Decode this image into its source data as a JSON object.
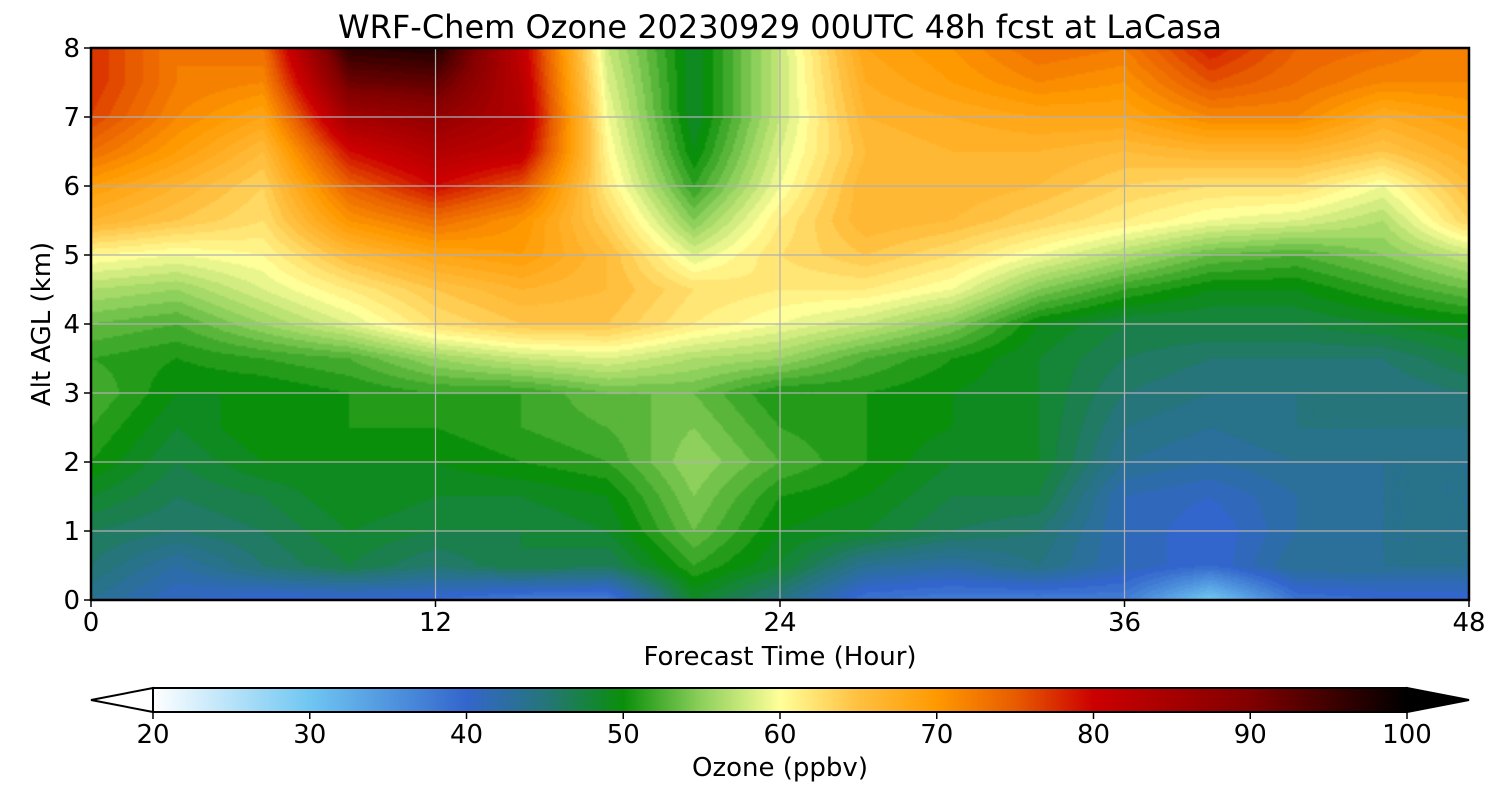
{
  "chart_data": {
    "type": "heatmap",
    "title": "WRF-Chem Ozone  20230929 00UTC 48h fcst at LaCasa",
    "xlabel": "Forecast Time (Hour)",
    "ylabel": "Alt AGL (km)",
    "xlim": [
      0,
      48
    ],
    "ylim": [
      0,
      8
    ],
    "xticks": [
      0,
      12,
      24,
      36,
      48
    ],
    "yticks": [
      0,
      1,
      2,
      3,
      4,
      5,
      6,
      7,
      8
    ],
    "grid": true,
    "colorbar": {
      "label": "Ozone  (ppbv)",
      "min": 20,
      "max": 100,
      "ticks": [
        20,
        30,
        40,
        50,
        60,
        70,
        80,
        90,
        100
      ],
      "extend": "both",
      "placement": "bottom",
      "colors": [
        {
          "v": 20,
          "c": "#ffffff"
        },
        {
          "v": 30,
          "c": "#6fc6f2"
        },
        {
          "v": 40,
          "c": "#3366cc"
        },
        {
          "v": 45,
          "c": "#25757a"
        },
        {
          "v": 50,
          "c": "#0a8f0a"
        },
        {
          "v": 55,
          "c": "#8ed05c"
        },
        {
          "v": 60,
          "c": "#ffff99"
        },
        {
          "v": 65,
          "c": "#ffc040"
        },
        {
          "v": 70,
          "c": "#ff9900"
        },
        {
          "v": 75,
          "c": "#e85c00"
        },
        {
          "v": 80,
          "c": "#cc0000"
        },
        {
          "v": 90,
          "c": "#800000"
        },
        {
          "v": 100,
          "c": "#000000"
        }
      ]
    },
    "x": [
      0,
      3,
      6,
      9,
      12,
      15,
      18,
      21,
      24,
      27,
      30,
      33,
      36,
      39,
      42,
      45,
      48
    ],
    "y": [
      0,
      0.5,
      1,
      1.5,
      2,
      2.5,
      3,
      3.5,
      4,
      4.5,
      5,
      5.5,
      6,
      6.5,
      7,
      7.5,
      8
    ],
    "values": [
      [
        44,
        41,
        40,
        40,
        40,
        38,
        38,
        49,
        45,
        39,
        38,
        38,
        38,
        30,
        39,
        40,
        40
      ],
      [
        46,
        43,
        46,
        48,
        46,
        48,
        47,
        52,
        49,
        44,
        43,
        45,
        42,
        40,
        44,
        44,
        44
      ],
      [
        47,
        46,
        47,
        49,
        48,
        48,
        49,
        54,
        50,
        49,
        47,
        46,
        42,
        40,
        43,
        44,
        44
      ],
      [
        49,
        47,
        48,
        50,
        49,
        49,
        50,
        55,
        51,
        50,
        48,
        48,
        42,
        41,
        43,
        44,
        44
      ],
      [
        51,
        48,
        50,
        50,
        50,
        51,
        52,
        56,
        53,
        51,
        49,
        49,
        44,
        43,
        44,
        44,
        44
      ],
      [
        52,
        49,
        51,
        51,
        51,
        52,
        53,
        55,
        52,
        51,
        50,
        49,
        45,
        44,
        45,
        45,
        45
      ],
      [
        53,
        50,
        50,
        51,
        52,
        52,
        54,
        54,
        51,
        51,
        50,
        49,
        46,
        45,
        45,
        45,
        46
      ],
      [
        52,
        51,
        52,
        53,
        56,
        58,
        59,
        57,
        56,
        53,
        51,
        49,
        47,
        46,
        46,
        46,
        48
      ],
      [
        54,
        53,
        56,
        59,
        63,
        65,
        65,
        62,
        60,
        58,
        55,
        50,
        48,
        48,
        48,
        49,
        50
      ],
      [
        57,
        56,
        59,
        62,
        65,
        67,
        66,
        63,
        62,
        62,
        60,
        55,
        52,
        50,
        50,
        52,
        54
      ],
      [
        61,
        60,
        61,
        66,
        69,
        70,
        66,
        59,
        63,
        65,
        63,
        60,
        57,
        54,
        53,
        55,
        58
      ],
      [
        67,
        65,
        63,
        71,
        74,
        71,
        64,
        55,
        62,
        67,
        66,
        64,
        62,
        60,
        59,
        57,
        64
      ],
      [
        70,
        67,
        64,
        75,
        80,
        76,
        62,
        52,
        60,
        67,
        67,
        66,
        64,
        63,
        63,
        60,
        66
      ],
      [
        74,
        70,
        66,
        80,
        84,
        82,
        61,
        50,
        59,
        66,
        67,
        67,
        66,
        67,
        67,
        65,
        68
      ],
      [
        77,
        72,
        69,
        86,
        88,
        84,
        60,
        49,
        58,
        67,
        68,
        69,
        69,
        72,
        72,
        68,
        70
      ],
      [
        78,
        73,
        72,
        92,
        93,
        83,
        59,
        49,
        58,
        68,
        70,
        72,
        71,
        76,
        74,
        72,
        72
      ],
      [
        78,
        73,
        74,
        97,
        98,
        82,
        58,
        49,
        58,
        69,
        71,
        74,
        73,
        79,
        75,
        74,
        72
      ]
    ]
  }
}
